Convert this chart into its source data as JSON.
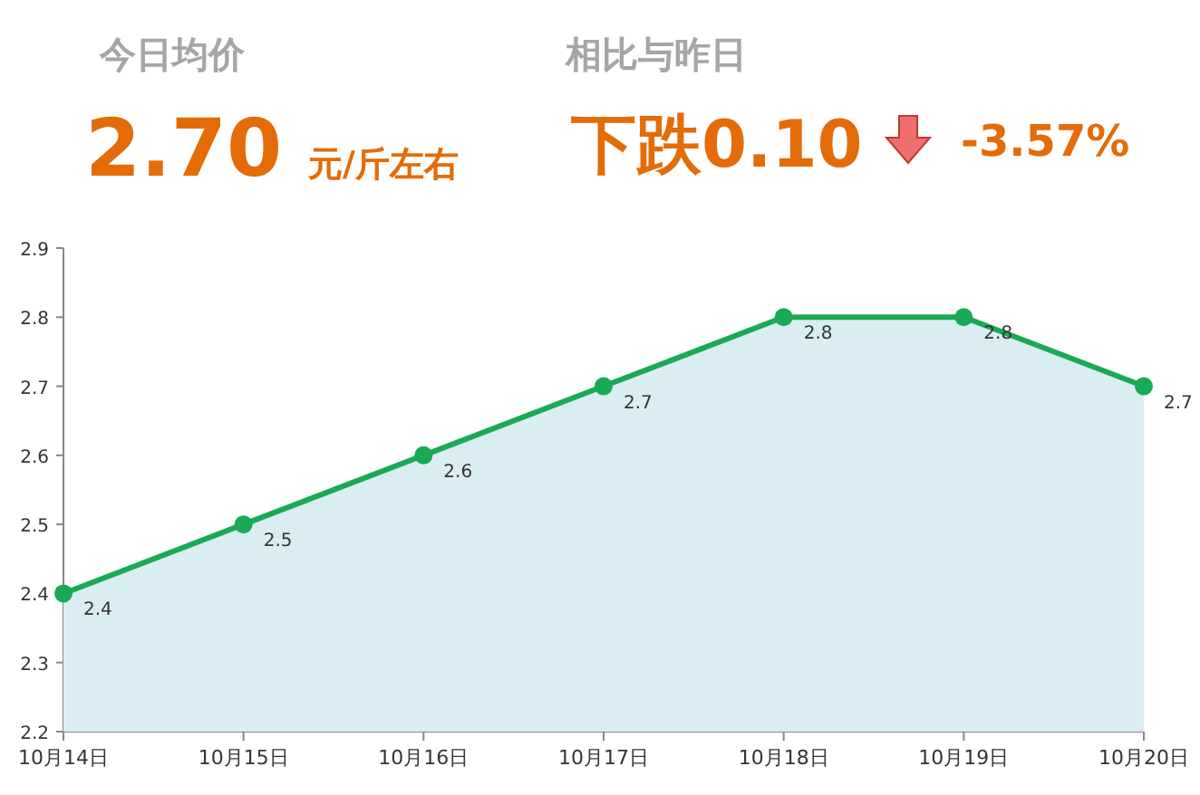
{
  "chart_data": {
    "type": "area",
    "categories": [
      "10月14日",
      "10月15日",
      "10月16日",
      "10月17日",
      "10月18日",
      "10月19日",
      "10月20日"
    ],
    "series": [
      {
        "color": "#1aaa55",
        "values": [
          2.4,
          2.5,
          2.6,
          2.7,
          2.8,
          2.8,
          2.7
        ]
      }
    ],
    "ylim": [
      2.2,
      2.9
    ],
    "yticks": [
      2.2,
      2.3,
      2.4,
      2.5,
      2.6,
      2.7,
      2.8,
      2.9
    ],
    "marker": "circle",
    "data_labels": true,
    "grid": false,
    "annotations": [
      "今日均价",
      "2.70",
      "元/斤左右",
      "相比与昨日",
      "下跌0.10",
      "-3.57%"
    ]
  }
}
